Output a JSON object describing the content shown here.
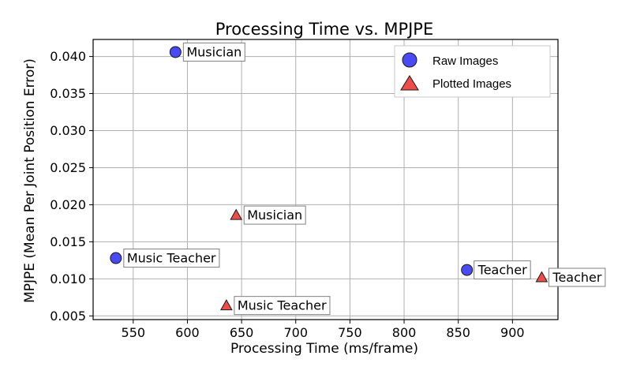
{
  "chart_data": {
    "type": "scatter",
    "title": "Processing Time vs. MPJPE",
    "xlabel": "Processing Time (ms/frame)",
    "ylabel": "MPJPE (Mean Per Joint Position Error)",
    "xlim": [
      513,
      942
    ],
    "ylim": [
      0.0045,
      0.0423
    ],
    "xticks": [
      550,
      600,
      650,
      700,
      750,
      800,
      850,
      900
    ],
    "yticks": [
      0.005,
      0.01,
      0.015,
      0.02,
      0.025,
      0.03,
      0.035,
      0.04
    ],
    "xtick_labels": [
      "550",
      "600",
      "650",
      "700",
      "750",
      "800",
      "850",
      "900"
    ],
    "ytick_labels": [
      "0.005",
      "0.010",
      "0.015",
      "0.020",
      "0.025",
      "0.030",
      "0.035",
      "0.040"
    ],
    "grid": true,
    "legend_position": "top-right",
    "series": [
      {
        "name": "Raw Images",
        "marker": "circle",
        "color": "#4a4af5",
        "points": [
          {
            "label": "Musician",
            "x": 589,
            "y": 0.0406
          },
          {
            "label": "Music Teacher",
            "x": 534,
            "y": 0.0128
          },
          {
            "label": "Teacher",
            "x": 858,
            "y": 0.0112
          }
        ]
      },
      {
        "name": "Plotted Images",
        "marker": "triangle",
        "color": "#ee4b4b",
        "points": [
          {
            "label": "Musician",
            "x": 645,
            "y": 0.0186
          },
          {
            "label": "Music Teacher",
            "x": 636,
            "y": 0.0064
          },
          {
            "label": "Teacher",
            "x": 927,
            "y": 0.0102
          }
        ]
      }
    ]
  }
}
